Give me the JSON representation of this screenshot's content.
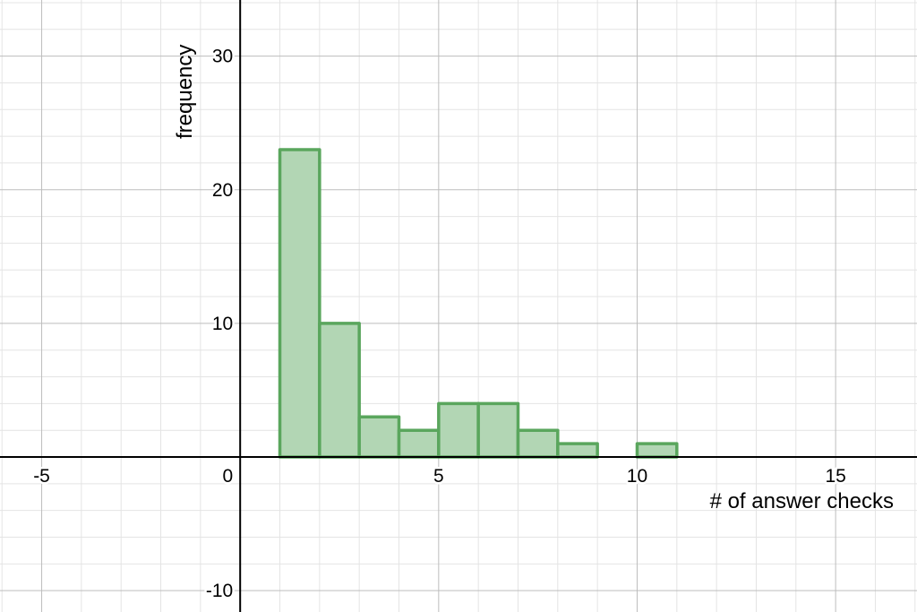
{
  "chart_data": {
    "type": "bar",
    "xlabel": "# of answer checks",
    "ylabel": "frequency",
    "xlim": [
      -6.05,
      17.05
    ],
    "ylim": [
      -11.6,
      34.2
    ],
    "x_ticks": [
      -5,
      5,
      10,
      15
    ],
    "y_ticks": [
      -10,
      10,
      20,
      30
    ],
    "origin_label": "0",
    "grid": true,
    "bins": [
      {
        "x0": 1,
        "x1": 2,
        "count": 23
      },
      {
        "x0": 2,
        "x1": 3,
        "count": 10
      },
      {
        "x0": 3,
        "x1": 4,
        "count": 3
      },
      {
        "x0": 4,
        "x1": 5,
        "count": 2
      },
      {
        "x0": 5,
        "x1": 6,
        "count": 4
      },
      {
        "x0": 6,
        "x1": 7,
        "count": 4
      },
      {
        "x0": 7,
        "x1": 8,
        "count": 2
      },
      {
        "x0": 8,
        "x1": 9,
        "count": 1
      },
      {
        "x0": 9,
        "x1": 10,
        "count": 0
      },
      {
        "x0": 10,
        "x1": 11,
        "count": 1
      }
    ],
    "colors": {
      "bar_fill": "#b2d6b4",
      "bar_stroke": "#5aa65d",
      "minor_grid": "#e4e4e4",
      "major_grid": "#bdbdbd",
      "axis": "#000000"
    }
  }
}
